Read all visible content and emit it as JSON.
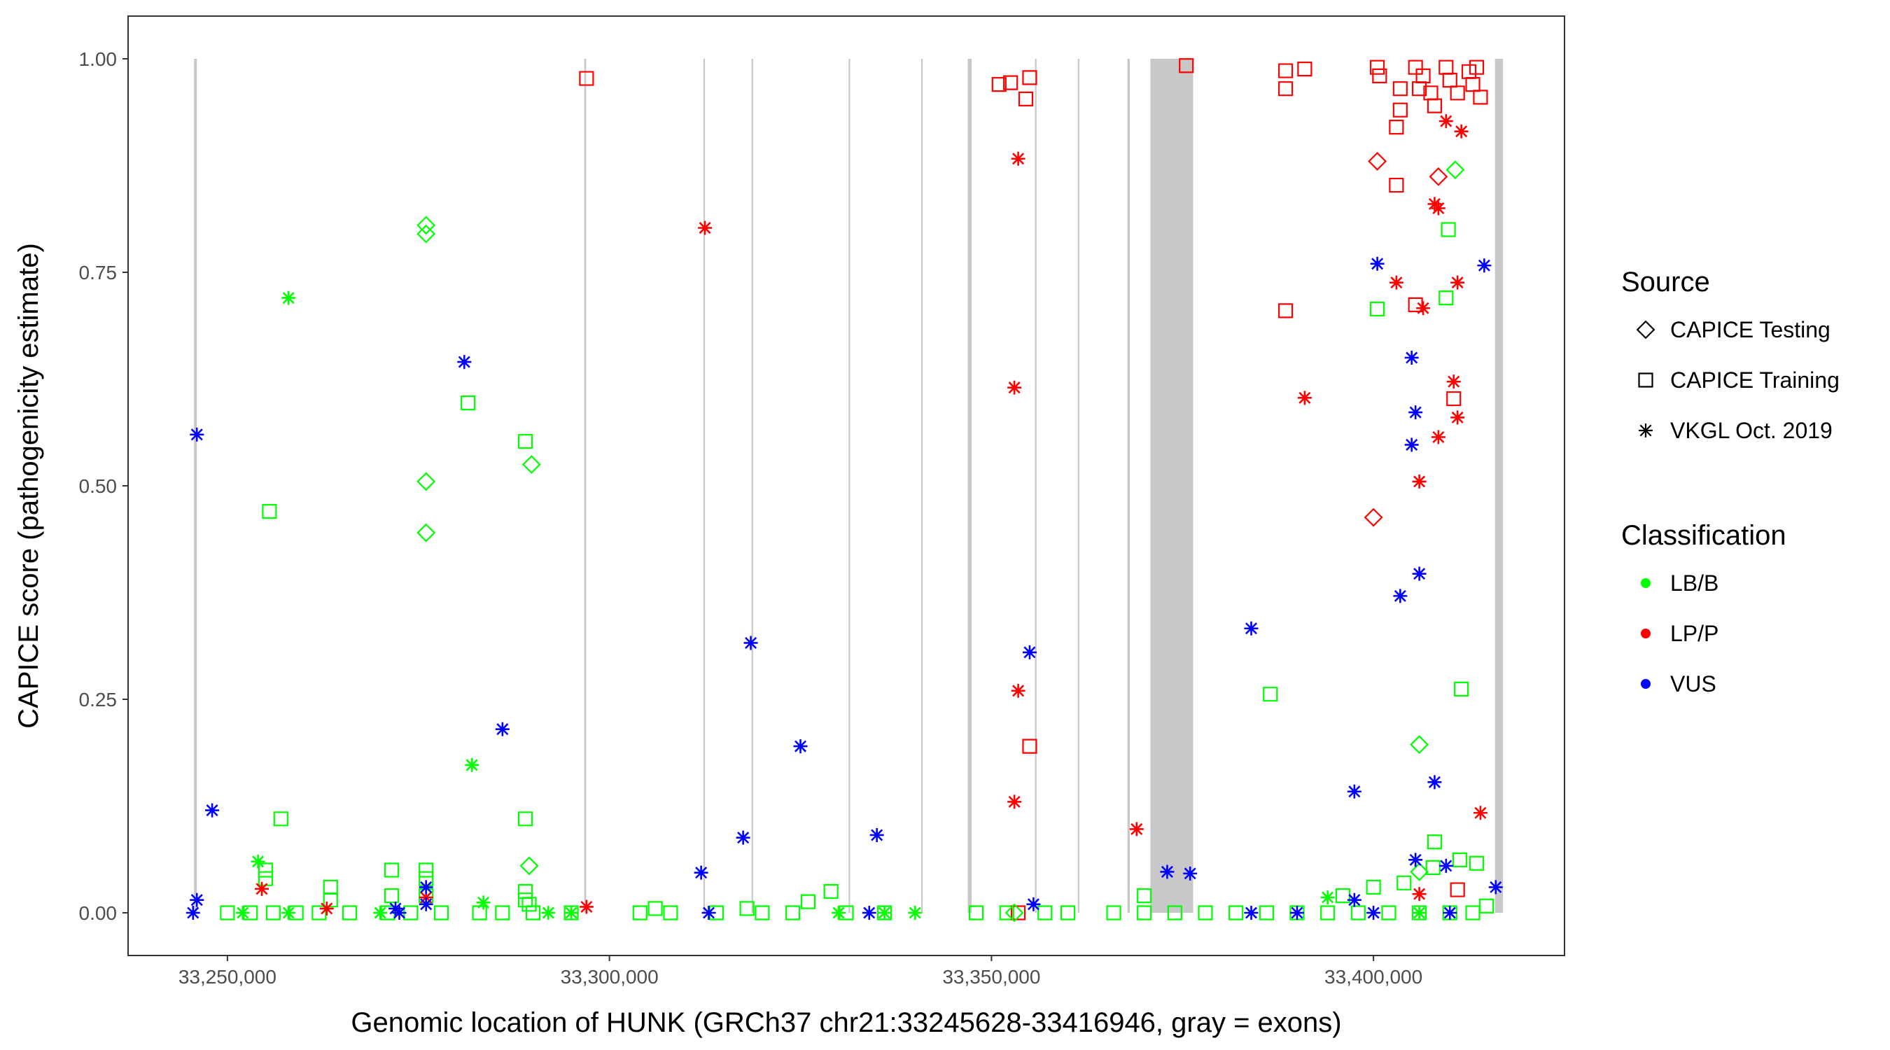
{
  "chart_data": {
    "type": "scatter",
    "xlabel": "Genomic location of HUNK (GRCh37 chr21:33245628-33416946, gray = exons)",
    "ylabel": "CAPICE score (pathogenicity estimate)",
    "xlim": [
      33237000,
      33425000
    ],
    "ylim": [
      -0.05,
      1.05
    ],
    "x_ticks": [
      33250000,
      33300000,
      33350000,
      33400000
    ],
    "x_tick_labels": [
      "33,250,000",
      "33,300,000",
      "33,350,000",
      "33,400,000"
    ],
    "y_ticks": [
      0,
      0.25,
      0.5,
      0.75,
      1
    ],
    "y_tick_labels": [
      "0.00",
      "0.25",
      "0.50",
      "0.75",
      "1.00"
    ],
    "exons": [
      [
        33245628,
        33246000
      ],
      [
        33296700,
        33296950
      ],
      [
        33312300,
        33312500
      ],
      [
        33318600,
        33318800
      ],
      [
        33331300,
        33331500
      ],
      [
        33340800,
        33341000
      ],
      [
        33346900,
        33347400
      ],
      [
        33355700,
        33355900
      ],
      [
        33361300,
        33361500
      ],
      [
        33367800,
        33368100
      ],
      [
        33370800,
        33376400
      ],
      [
        33415900,
        33416946
      ]
    ],
    "legend_source": {
      "title": "Source",
      "items": [
        {
          "label": "CAPICE Testing",
          "shape": "diamond"
        },
        {
          "label": "CAPICE Training",
          "shape": "square"
        },
        {
          "label": "VKGL Oct. 2019",
          "shape": "asterisk"
        }
      ]
    },
    "legend_class": {
      "title": "Classification",
      "items": [
        {
          "label": "LB/B",
          "color": "#00ff00"
        },
        {
          "label": "LP/P",
          "color": "#ff0000"
        },
        {
          "label": "VUS",
          "color": "#0000ff"
        }
      ]
    },
    "series": [
      {
        "name": "LB/B CAPICE Testing",
        "classification": "LB/B",
        "source": "CAPICE Testing",
        "points": [
          [
            33276000,
            0.805
          ],
          [
            33276000,
            0.795
          ],
          [
            33276000,
            0.505
          ],
          [
            33276000,
            0.445
          ],
          [
            33289800,
            0.525
          ],
          [
            33289500,
            0.055
          ],
          [
            33410700,
            0.87
          ],
          [
            33406000,
            0.197
          ],
          [
            33406000,
            0.048
          ],
          [
            33353000,
            0.0
          ]
        ]
      },
      {
        "name": "LB/B CAPICE Training",
        "classification": "LB/B",
        "source": "CAPICE Training",
        "points": [
          [
            33255500,
            0.47
          ],
          [
            33257000,
            0.11
          ],
          [
            33281500,
            0.597
          ],
          [
            33289000,
            0.552
          ],
          [
            33289000,
            0.11
          ],
          [
            33255000,
            0.05
          ],
          [
            33255000,
            0.04
          ],
          [
            33263500,
            0.03
          ],
          [
            33263500,
            0.015
          ],
          [
            33271500,
            0.05
          ],
          [
            33271500,
            0.02
          ],
          [
            33276000,
            0.05
          ],
          [
            33276000,
            0.04
          ],
          [
            33276000,
            0.02
          ],
          [
            33289000,
            0.025
          ],
          [
            33289000,
            0.015
          ],
          [
            33289500,
            0.01
          ],
          [
            33329000,
            0.025
          ],
          [
            33326000,
            0.013
          ],
          [
            33306000,
            0.005
          ],
          [
            33318000,
            0.005
          ],
          [
            33370000,
            0.02
          ],
          [
            33386500,
            0.256
          ],
          [
            33400500,
            0.707
          ],
          [
            33409800,
            0.8
          ],
          [
            33409500,
            0.72
          ],
          [
            33411500,
            0.262
          ],
          [
            33413500,
            0.058
          ],
          [
            33408000,
            0.083
          ],
          [
            33411300,
            0.062
          ],
          [
            33407800,
            0.053
          ],
          [
            33404000,
            0.035
          ],
          [
            33400000,
            0.03
          ],
          [
            33396000,
            0.02
          ],
          [
            33414800,
            0.008
          ],
          [
            33250000,
            0.0
          ],
          [
            33253000,
            0.0
          ],
          [
            33256000,
            0.0
          ],
          [
            33259000,
            0.0
          ],
          [
            33262000,
            0.0
          ],
          [
            33266000,
            0.0
          ],
          [
            33271000,
            0.0
          ],
          [
            33274000,
            0.0
          ],
          [
            33278000,
            0.0
          ],
          [
            33283000,
            0.0
          ],
          [
            33286000,
            0.0
          ],
          [
            33290000,
            0.0
          ],
          [
            33295000,
            0.0
          ],
          [
            33304000,
            0.0
          ],
          [
            33308000,
            0.0
          ],
          [
            33314000,
            0.0
          ],
          [
            33320000,
            0.0
          ],
          [
            33324000,
            0.0
          ],
          [
            33331000,
            0.0
          ],
          [
            33336000,
            0.0
          ],
          [
            33348000,
            0.0
          ],
          [
            33352000,
            0.0
          ],
          [
            33357000,
            0.0
          ],
          [
            33360000,
            0.0
          ],
          [
            33366000,
            0.0
          ],
          [
            33370000,
            0.0
          ],
          [
            33374000,
            0.0
          ],
          [
            33378000,
            0.0
          ],
          [
            33382000,
            0.0
          ],
          [
            33386000,
            0.0
          ],
          [
            33390000,
            0.0
          ],
          [
            33394000,
            0.0
          ],
          [
            33398000,
            0.0
          ],
          [
            33402000,
            0.0
          ],
          [
            33406000,
            0.0
          ],
          [
            33410000,
            0.0
          ],
          [
            33413000,
            0.0
          ]
        ]
      },
      {
        "name": "LB/B VKGL Oct. 2019",
        "classification": "LB/B",
        "source": "VKGL Oct. 2019",
        "points": [
          [
            33258000,
            0.72
          ],
          [
            33282000,
            0.173
          ],
          [
            33254000,
            0.06
          ],
          [
            33283500,
            0.012
          ],
          [
            33292000,
            0.0
          ],
          [
            33295000,
            0.0
          ],
          [
            33330000,
            0.0
          ],
          [
            33336000,
            0.0
          ],
          [
            33340000,
            0.0
          ],
          [
            33394000,
            0.018
          ],
          [
            33406000,
            0.0
          ],
          [
            33252000,
            0.0
          ],
          [
            33258000,
            0.0
          ],
          [
            33270000,
            0.0
          ]
        ]
      },
      {
        "name": "LP/P CAPICE Testing",
        "classification": "LP/P",
        "source": "CAPICE Testing",
        "points": [
          [
            33400500,
            0.88
          ],
          [
            33408500,
            0.862
          ],
          [
            33400000,
            0.463
          ]
        ]
      },
      {
        "name": "LP/P CAPICE Training",
        "classification": "LP/P",
        "source": "CAPICE Training",
        "points": [
          [
            33297000,
            0.977
          ],
          [
            33351000,
            0.97
          ],
          [
            33352500,
            0.972
          ],
          [
            33355000,
            0.978
          ],
          [
            33354500,
            0.953
          ],
          [
            33375500,
            0.992
          ],
          [
            33388500,
            0.986
          ],
          [
            33391000,
            0.988
          ],
          [
            33388500,
            0.965
          ],
          [
            33400500,
            0.99
          ],
          [
            33400800,
            0.98
          ],
          [
            33403500,
            0.965
          ],
          [
            33403500,
            0.94
          ],
          [
            33403000,
            0.92
          ],
          [
            33405500,
            0.99
          ],
          [
            33406500,
            0.98
          ],
          [
            33406000,
            0.965
          ],
          [
            33407500,
            0.96
          ],
          [
            33408000,
            0.945
          ],
          [
            33409500,
            0.99
          ],
          [
            33410000,
            0.975
          ],
          [
            33411000,
            0.96
          ],
          [
            33412500,
            0.985
          ],
          [
            33413000,
            0.97
          ],
          [
            33413500,
            0.99
          ],
          [
            33414000,
            0.955
          ],
          [
            33403000,
            0.852
          ],
          [
            33388500,
            0.705
          ],
          [
            33405500,
            0.712
          ],
          [
            33410500,
            0.602
          ],
          [
            33355000,
            0.195
          ],
          [
            33411000,
            0.027
          ],
          [
            33353500,
            0.0
          ]
        ]
      },
      {
        "name": "LP/P VKGL Oct. 2019",
        "classification": "LP/P",
        "source": "VKGL Oct. 2019",
        "points": [
          [
            33353500,
            0.883
          ],
          [
            33312500,
            0.802
          ],
          [
            33353000,
            0.615
          ],
          [
            33353500,
            0.26
          ],
          [
            33353000,
            0.13
          ],
          [
            33369000,
            0.098
          ],
          [
            33391000,
            0.603
          ],
          [
            33403000,
            0.738
          ],
          [
            33406500,
            0.708
          ],
          [
            33410500,
            0.622
          ],
          [
            33411000,
            0.58
          ],
          [
            33408500,
            0.557
          ],
          [
            33406000,
            0.505
          ],
          [
            33408000,
            0.83
          ],
          [
            33408500,
            0.825
          ],
          [
            33409500,
            0.927
          ],
          [
            33411500,
            0.915
          ],
          [
            33411000,
            0.738
          ],
          [
            33414000,
            0.117
          ],
          [
            33406000,
            0.022
          ],
          [
            33254500,
            0.028
          ],
          [
            33263000,
            0.005
          ],
          [
            33276000,
            0.018
          ],
          [
            33297000,
            0.007
          ]
        ]
      },
      {
        "name": "VUS VKGL Oct. 2019",
        "classification": "VUS",
        "source": "VKGL Oct. 2019",
        "points": [
          [
            33246000,
            0.56
          ],
          [
            33248000,
            0.12
          ],
          [
            33246000,
            0.015
          ],
          [
            33245500,
            0.0
          ],
          [
            33281000,
            0.645
          ],
          [
            33286000,
            0.215
          ],
          [
            33276000,
            0.03
          ],
          [
            33276000,
            0.01
          ],
          [
            33272000,
            0.005
          ],
          [
            33272500,
            0.0
          ],
          [
            33318500,
            0.316
          ],
          [
            33325000,
            0.195
          ],
          [
            33317500,
            0.088
          ],
          [
            33312000,
            0.047
          ],
          [
            33313000,
            0.0
          ],
          [
            33335000,
            0.091
          ],
          [
            33334000,
            0.0
          ],
          [
            33355000,
            0.305
          ],
          [
            33355500,
            0.01
          ],
          [
            33373000,
            0.048
          ],
          [
            33376000,
            0.046
          ],
          [
            33384000,
            0.333
          ],
          [
            33397500,
            0.142
          ],
          [
            33400500,
            0.76
          ],
          [
            33405000,
            0.65
          ],
          [
            33405500,
            0.586
          ],
          [
            33405000,
            0.548
          ],
          [
            33406000,
            0.397
          ],
          [
            33403500,
            0.371
          ],
          [
            33408000,
            0.153
          ],
          [
            33405500,
            0.062
          ],
          [
            33414500,
            0.758
          ],
          [
            33409500,
            0.055
          ],
          [
            33416000,
            0.03
          ],
          [
            33397500,
            0.015
          ],
          [
            33384000,
            0.0
          ],
          [
            33390000,
            0.0
          ],
          [
            33400000,
            0.0
          ],
          [
            33410000,
            0.0
          ]
        ]
      }
    ]
  }
}
